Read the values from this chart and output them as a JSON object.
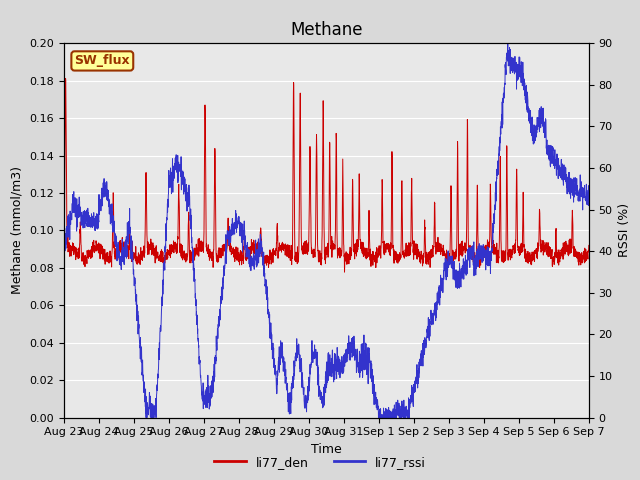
{
  "title": "Methane",
  "ylabel_left": "Methane (mmol/m3)",
  "ylabel_right": "RSSI (%)",
  "xlabel": "Time",
  "ylim_left": [
    0.0,
    0.2
  ],
  "ylim_right": [
    0,
    90
  ],
  "yticks_left": [
    0.0,
    0.02,
    0.04,
    0.06,
    0.08,
    0.1,
    0.12,
    0.14,
    0.16,
    0.18,
    0.2
  ],
  "yticks_right": [
    0,
    10,
    20,
    30,
    40,
    50,
    60,
    70,
    80,
    90
  ],
  "xtick_labels": [
    "Aug 23",
    "Aug 24",
    "Aug 25",
    "Aug 26",
    "Aug 27",
    "Aug 28",
    "Aug 29",
    "Aug 30",
    "Aug 31",
    "Sep 1",
    "Sep 2",
    "Sep 3",
    "Sep 4",
    "Sep 5",
    "Sep 6",
    "Sep 7"
  ],
  "color_red": "#cc0000",
  "color_blue": "#3333cc",
  "legend_label_red": "li77_den",
  "legend_label_blue": "li77_rssi",
  "sw_flux_text": "SW_flux",
  "sw_flux_bg": "#ffff99",
  "sw_flux_border": "#993300",
  "fig_bg_color": "#d9d9d9",
  "plot_bg_color": "#e8e8e8",
  "title_fontsize": 12,
  "axis_fontsize": 9,
  "tick_fontsize": 8
}
